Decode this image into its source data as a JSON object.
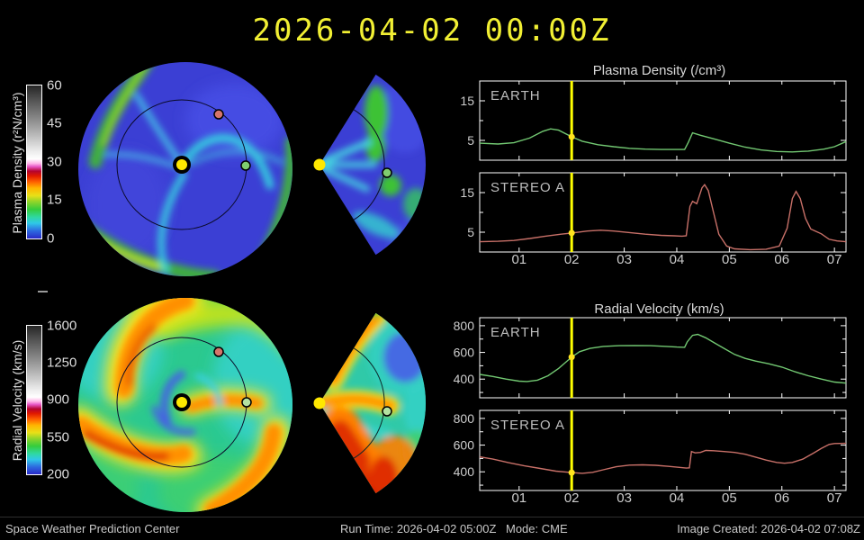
{
  "title": "2026-04-02 00:00Z",
  "colorbars": {
    "density": {
      "label": "Plasma Density (r²N/cm³)",
      "ticks": [
        "60",
        "45",
        "30",
        "15",
        "0"
      ]
    },
    "velocity": {
      "label": "Radial Velocity (km/s)",
      "ticks": [
        "1600",
        "1250",
        "900",
        "550",
        "200"
      ]
    }
  },
  "markers": {
    "sun_color": "#ffe800",
    "earth_color": "#7fce6f",
    "stereo_a_color": "#d4756b",
    "now_line_color": "#ffff00"
  },
  "footer": {
    "org": "Space Weather Prediction Center",
    "run_time": "Run Time: 2026-04-02 05:00Z",
    "mode": "Mode: CME",
    "created": "Image Created: 2026-04-02 07:08Z"
  },
  "chart_data": [
    {
      "type": "line",
      "title": "Plasma Density (/cm³)",
      "xlim": [
        0.25,
        7.22
      ],
      "xticks": [
        "01",
        "02",
        "03",
        "04",
        "05",
        "06",
        "07"
      ],
      "xtick_values": [
        1,
        2,
        3,
        4,
        5,
        6,
        7
      ],
      "ylim": [
        0,
        20
      ],
      "yticks": [
        5,
        15
      ],
      "yticks_minor": [
        10,
        20
      ],
      "now": {
        "x": 2,
        "color": "#ffff00"
      },
      "panels": [
        {
          "name": "EARTH",
          "color": "#72c872",
          "x": [
            0.25,
            0.6,
            0.9,
            1.2,
            1.45,
            1.6,
            1.75,
            2.0,
            2.2,
            2.5,
            2.8,
            3.1,
            3.4,
            3.7,
            4.0,
            4.15,
            4.22,
            4.3,
            4.45,
            4.7,
            5.0,
            5.3,
            5.6,
            5.9,
            6.2,
            6.5,
            6.8,
            7.0,
            7.22
          ],
          "y": [
            4.3,
            4.1,
            4.4,
            5.6,
            7.3,
            7.9,
            7.6,
            5.9,
            4.8,
            3.9,
            3.4,
            3.0,
            2.8,
            2.7,
            2.7,
            2.7,
            4.5,
            6.9,
            6.3,
            5.4,
            4.3,
            3.3,
            2.6,
            2.2,
            2.1,
            2.3,
            2.8,
            3.4,
            4.7
          ]
        },
        {
          "name": "STEREO A",
          "color": "#c87068",
          "x": [
            0.25,
            0.6,
            0.9,
            1.2,
            1.5,
            1.8,
            2.0,
            2.3,
            2.55,
            2.8,
            3.1,
            3.4,
            3.7,
            3.95,
            4.1,
            4.18,
            4.25,
            4.3,
            4.38,
            4.48,
            4.53,
            4.6,
            4.7,
            4.8,
            4.95,
            5.1,
            5.4,
            5.7,
            5.95,
            6.1,
            6.2,
            6.27,
            6.35,
            6.45,
            6.55,
            6.65,
            6.75,
            6.9,
            7.05,
            7.22
          ],
          "y": [
            2.6,
            2.7,
            2.9,
            3.4,
            4.0,
            4.5,
            4.8,
            5.3,
            5.5,
            5.3,
            4.9,
            4.5,
            4.2,
            4.1,
            4.0,
            4.1,
            11.5,
            12.8,
            12.2,
            16.2,
            17.0,
            15.5,
            10.0,
            4.5,
            1.5,
            0.8,
            0.6,
            0.7,
            1.5,
            6.0,
            13.5,
            15.3,
            13.5,
            8.5,
            5.8,
            5.2,
            4.6,
            3.2,
            2.8,
            2.6
          ]
        }
      ]
    },
    {
      "type": "line",
      "title": "Radial Velocity (km/s)",
      "xlim": [
        0.25,
        7.22
      ],
      "xticks": [
        "01",
        "02",
        "03",
        "04",
        "05",
        "06",
        "07"
      ],
      "xtick_values": [
        1,
        2,
        3,
        4,
        5,
        6,
        7
      ],
      "ylim": [
        260,
        860
      ],
      "yticks": [
        400,
        600,
        800
      ],
      "yticks_minor": [
        300,
        500,
        700
      ],
      "now": {
        "x": 2,
        "color": "#ffff00"
      },
      "panels": [
        {
          "name": "EARTH",
          "color": "#72c872",
          "x": [
            0.25,
            0.5,
            0.75,
            1.0,
            1.15,
            1.35,
            1.55,
            1.75,
            1.9,
            2.0,
            2.15,
            2.35,
            2.6,
            2.9,
            3.2,
            3.5,
            3.8,
            4.0,
            4.15,
            4.2,
            4.3,
            4.4,
            4.55,
            4.7,
            4.9,
            5.1,
            5.3,
            5.5,
            5.75,
            6.0,
            6.25,
            6.5,
            6.75,
            7.0,
            7.22
          ],
          "y": [
            435,
            420,
            400,
            385,
            382,
            392,
            425,
            480,
            530,
            565,
            605,
            630,
            645,
            650,
            652,
            650,
            645,
            640,
            638,
            680,
            728,
            735,
            710,
            675,
            630,
            585,
            555,
            535,
            515,
            490,
            455,
            425,
            400,
            378,
            370
          ]
        },
        {
          "name": "STEREO A",
          "color": "#c87068",
          "x": [
            0.25,
            0.5,
            0.8,
            1.1,
            1.4,
            1.7,
            2.0,
            2.2,
            2.4,
            2.6,
            2.85,
            3.1,
            3.35,
            3.6,
            3.85,
            4.05,
            4.18,
            4.24,
            4.28,
            4.35,
            4.45,
            4.55,
            4.7,
            4.9,
            5.1,
            5.3,
            5.5,
            5.7,
            5.9,
            6.05,
            6.2,
            6.4,
            6.6,
            6.75,
            6.9,
            7.0,
            7.22
          ],
          "y": [
            512,
            495,
            468,
            445,
            425,
            405,
            394,
            389,
            396,
            415,
            438,
            450,
            452,
            449,
            441,
            433,
            428,
            430,
            552,
            542,
            545,
            560,
            558,
            552,
            545,
            532,
            510,
            488,
            470,
            464,
            470,
            495,
            540,
            575,
            605,
            612,
            613
          ]
        }
      ]
    }
  ]
}
